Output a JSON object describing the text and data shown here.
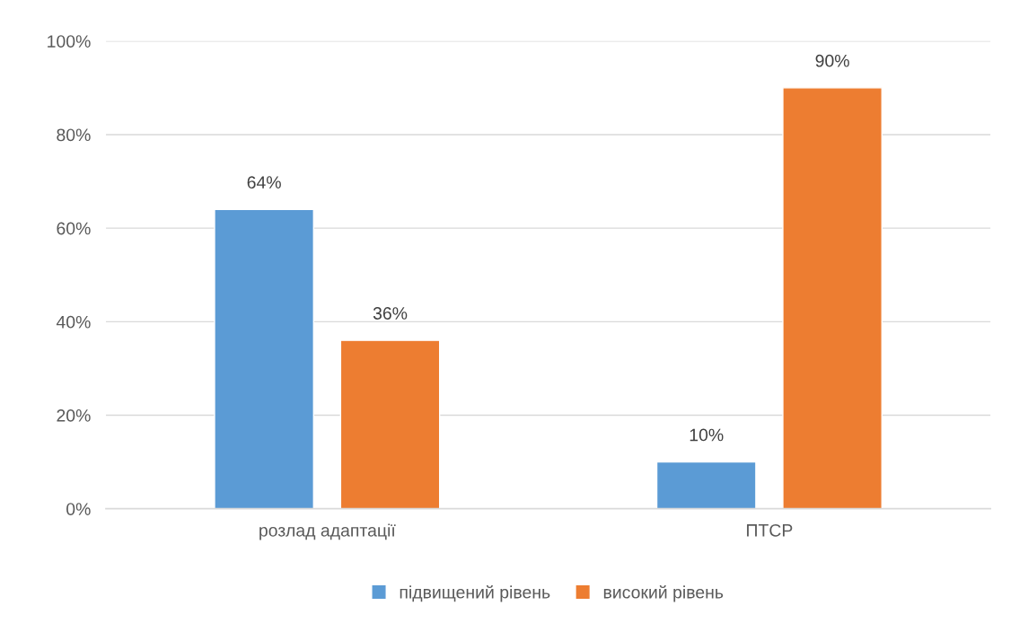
{
  "chart_data": {
    "type": "bar",
    "categories": [
      "розлад адаптації",
      "ПТСР"
    ],
    "series": [
      {
        "name": "підвищений рівень",
        "color": "#5b9bd5",
        "values": [
          64,
          10
        ],
        "value_labels": [
          "64%",
          "10%"
        ]
      },
      {
        "name": "високий рівень",
        "color": "#ed7d31",
        "values": [
          36,
          90
        ],
        "value_labels": [
          "36%",
          "90%"
        ]
      }
    ],
    "ylim": [
      0,
      100
    ],
    "yticks": [
      {
        "value": 0,
        "label": "0%"
      },
      {
        "value": 20,
        "label": "20%"
      },
      {
        "value": 40,
        "label": "40%"
      },
      {
        "value": 60,
        "label": "60%"
      },
      {
        "value": 80,
        "label": "80%"
      },
      {
        "value": 100,
        "label": "100%"
      }
    ],
    "grid": "y",
    "legend": "bottom"
  }
}
